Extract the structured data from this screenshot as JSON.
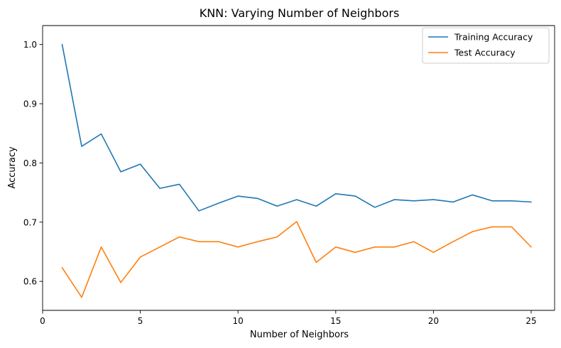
{
  "chart_data": {
    "type": "line",
    "title": "KNN: Varying Number of Neighbors",
    "xlabel": "Number of Neighbors",
    "ylabel": "Accuracy",
    "xlim": [
      0,
      26.2
    ],
    "ylim": [
      0.551,
      1.032
    ],
    "xticks": [
      0,
      5,
      10,
      15,
      20,
      25
    ],
    "yticks": [
      0.6,
      0.7,
      0.8,
      0.9,
      1.0
    ],
    "xtick_labels": [
      "0",
      "5",
      "10",
      "15",
      "20",
      "25"
    ],
    "ytick_labels": [
      "0.6",
      "0.7",
      "0.8",
      "0.9",
      "1.0"
    ],
    "grid": false,
    "legend_position": "top-right",
    "x": [
      1,
      2,
      3,
      4,
      5,
      6,
      7,
      8,
      9,
      10,
      11,
      12,
      13,
      14,
      15,
      16,
      17,
      18,
      19,
      20,
      21,
      22,
      23,
      24,
      25
    ],
    "series": [
      {
        "name": "Training Accuracy",
        "color": "#1f77b4",
        "values": [
          1.0,
          0.828,
          0.849,
          0.785,
          0.798,
          0.757,
          0.764,
          0.719,
          0.732,
          0.744,
          0.74,
          0.727,
          0.738,
          0.727,
          0.748,
          0.744,
          0.725,
          0.738,
          0.736,
          0.738,
          0.734,
          0.746,
          0.736,
          0.736,
          0.734
        ]
      },
      {
        "name": "Test Accuracy",
        "color": "#ff7f0e",
        "values": [
          0.623,
          0.573,
          0.658,
          0.598,
          0.641,
          0.658,
          0.675,
          0.667,
          0.667,
          0.658,
          0.667,
          0.675,
          0.701,
          0.632,
          0.658,
          0.649,
          0.658,
          0.658,
          0.667,
          0.649,
          0.667,
          0.684,
          0.692,
          0.692,
          0.658
        ]
      }
    ]
  }
}
